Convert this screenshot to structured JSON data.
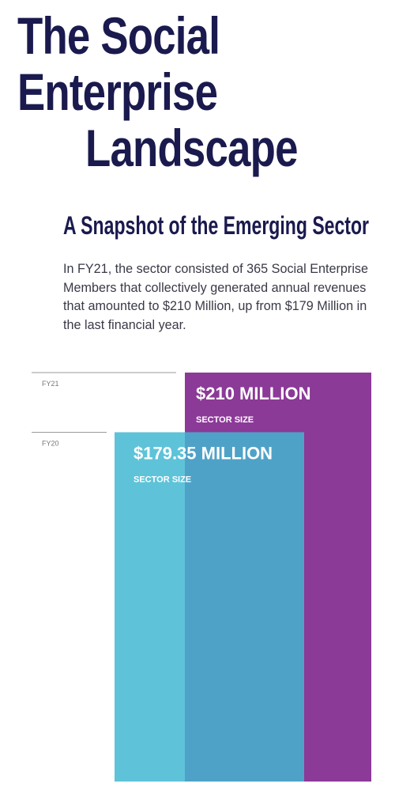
{
  "header": {
    "title_lines": [
      "The Social",
      "Enterprise",
      "Landscape"
    ],
    "subtitle": "A Snapshot of the Emerging Sector",
    "intro": "In FY21, the sector consisted of 365 Social Enterprise Members that collectively generated annual revenues that amounted to $210 Million, up from $179 Million in the last financial year."
  },
  "colors": {
    "title": "#1a1a4e",
    "fy21": "#8b3a97",
    "fy20": "#5ec3d9",
    "overlap": "#4fa2c7"
  },
  "chart_data": {
    "type": "bar",
    "categories": [
      "FY21",
      "FY20"
    ],
    "values": [
      210,
      179.35
    ],
    "unit": "Million",
    "value_labels": [
      "$210 MILLION",
      "$179.35 MILLION"
    ],
    "sub_labels": [
      "SECTOR SIZE",
      "SECTOR SIZE"
    ]
  }
}
